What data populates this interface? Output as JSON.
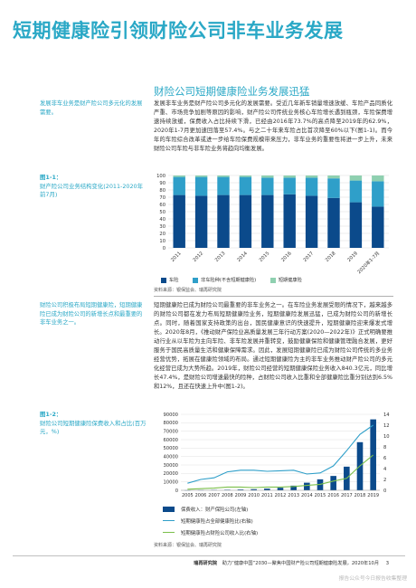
{
  "header": {
    "title": "短期健康险引领财险公司非车业务发展"
  },
  "section": {
    "heading": "财险公司短期健康险业务发展迅猛",
    "note1": "发展非车业务是财产险公司多元化的发展需要。",
    "para1": "发展非车业务是财产险公司多元化的发展需要。受近几年新车销量增速放缓、车险产品同质化严重、市场竞争加剧等原因的影响，财产险公司传统业务核心车险增长遇到瓶颈，车险保费增速持续放缓，保费收入占比持续下滑，已经由2016年73.7%的高点降至2019年的62.9%，2020年1-7月更加速回落至57.4%。与之二十年来车险占比首次降至60%以下(图1-1)。而今年的车险综合改革或进一步给车险保费规模带来压力，非车业务的重要性将进一步上升，未来财险公司车险与非车险业务将趋向均衡发展。",
    "note2": "财险公司积极布局短期健康险，短期健康险已成为财险公司的新增长点和最重要的非车业务之一。",
    "para2": "短期健康险已成为财险公司最重要的非车业务之一。在车险业务发展受限的情况下，越来越多的财险公司都在发力布局短期健康险业务，短期健康险发展迅猛，已成为财险公司的新增长点。同时，随着国家支持政策的出台，国民健康意识的快速提升，短期健康险迎来爆发式增长。2020年8月，《推动财产保险业高质量发展三年行动方案(2020—2022年)》正式明确要推动行业从以车险为主向车险、非车险发展并重转变，鼓励健康保险和健康管理融合发展，更好服务于国民高质量生活和健康保障需求。因此，发展短期健康险已成为财险公司传统的多业务经营优势，拓展在健康险领域的布局。通过短期健康险为主的非车业务推动财产险公司的多元化经营已成为大势所趋。2019年，财险公司经营的短期健康保险业务收入840.3亿元，同比增长47.4%，是财险公司增速最快的险种，占财险公司收入比重和全部健康险比重分别达到6.5%和12%，且还在快速上升中(图1-2)。"
  },
  "figure1": {
    "label_num": "图1-1：",
    "label_text": "财产险公司业务结构变化(2011-2020年前7月)",
    "source": "资料来源：银保监会、瑞再研究院"
  },
  "figure2": {
    "label_num": "图1-2：",
    "label_text": "财险公司短期健康险保费收入和占比(百万元，%)",
    "source": "资料来源：银保监会、瑞再研究院"
  },
  "chart_data": [
    {
      "type": "bar",
      "stacked": true,
      "categories": [
        "2011",
        "2012",
        "2013",
        "2014",
        "2015",
        "2016",
        "2017",
        "2018",
        "2019",
        "2020年1-7月"
      ],
      "series": [
        {
          "name": "车险",
          "color": "#0b4a8b",
          "values": [
            73,
            72,
            73,
            73,
            73,
            74,
            72,
            69,
            63,
            57
          ]
        },
        {
          "name": "非车险种(不含短期健康险)",
          "color": "#2f9fc9",
          "values": [
            25,
            26,
            25,
            25,
            24,
            23,
            25,
            27,
            30,
            35
          ]
        },
        {
          "name": "短期健康险",
          "color": "#8fd0b0",
          "values": [
            2,
            2,
            2,
            2,
            3,
            3,
            3,
            4,
            7,
            8
          ]
        }
      ],
      "yticks": [
        0,
        10,
        20,
        30,
        40,
        50,
        60,
        70,
        80,
        90,
        100
      ],
      "ylim": [
        0,
        100
      ],
      "grid": true,
      "legend": "bottom"
    },
    {
      "type": "bar",
      "categories": [
        "2005",
        "2006",
        "2007",
        "2008",
        "2009",
        "2010",
        "2011",
        "2012",
        "2013",
        "2014",
        "2015",
        "2016",
        "2017",
        "2018",
        "2019"
      ],
      "series": [
        {
          "name": "保费收入：财产保险公司(左轴)",
          "axis": "left",
          "kind": "bar",
          "color": "#0b4a8b",
          "values": [
            100,
            200,
            400,
            600,
            900,
            1300,
            2000,
            3000,
            5500,
            9000,
            13000,
            17000,
            28000,
            57000,
            84000
          ]
        },
        {
          "name": "短期健康险占全部健康险比(右轴)",
          "axis": "right",
          "kind": "line",
          "color": "#2f9fc9",
          "values": [
            1.3,
            2.0,
            2.3,
            3.4,
            3.7,
            3.7,
            3.5,
            3.6,
            3.7,
            3.0,
            3.2,
            4.5,
            7.3,
            10.3,
            12.0
          ]
        },
        {
          "name": "短期健康险占财险公司收入比(右轴)",
          "axis": "right",
          "kind": "line",
          "color": "#7cc04b",
          "values": [
            0.2,
            0.3,
            0.4,
            0.6,
            0.6,
            0.5,
            0.6,
            0.6,
            0.7,
            0.9,
            1.1,
            1.7,
            2.2,
            4.5,
            6.5
          ]
        }
      ],
      "yticks_left": [
        0,
        10000,
        20000,
        30000,
        40000,
        50000,
        60000,
        70000,
        80000,
        90000
      ],
      "yticks_right": [
        0,
        2,
        4,
        6,
        8,
        10,
        12,
        14
      ],
      "ylim_left": [
        0,
        90000
      ],
      "ylim_right": [
        0,
        14
      ],
      "grid": true,
      "legend": "bottom"
    }
  ],
  "footer": {
    "brand": "瑞再研究院",
    "text": "助力“健康中国”2030—聚焦中国财产险公司短期健康险发展，2020年10月",
    "page": "3"
  },
  "watermark": "报告公众号今日报告收集整理"
}
